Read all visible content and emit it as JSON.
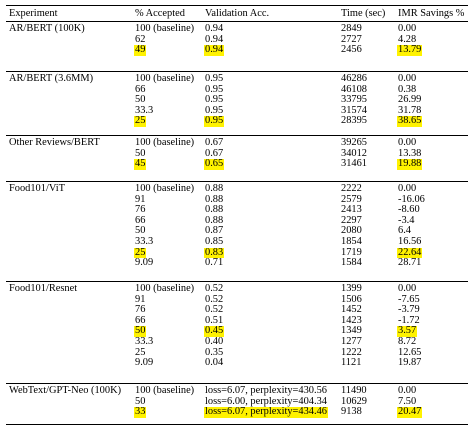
{
  "header": {
    "experiment": "Experiment",
    "accepted": "% Accepted",
    "validation": "Validation Acc.",
    "time": "Time (sec)",
    "savings": "IMR Savings %"
  },
  "highlight_color": "#fff200",
  "groups": [
    {
      "name": "AR/BERT (100K)",
      "rows": [
        {
          "accepted": "100 (baseline)",
          "acc": "0.94",
          "time": "2849",
          "savings": "0.00",
          "hl": false
        },
        {
          "accepted": "62",
          "acc": "0.94",
          "time": "2727",
          "savings": "4.28",
          "hl": false
        },
        {
          "accepted": "49",
          "acc": "0.94",
          "time": "2456",
          "savings": "13.79",
          "hl": true
        }
      ]
    },
    {
      "name": "AR/BERT (3.6MM)",
      "rows": [
        {
          "accepted": "100 (baseline)",
          "acc": "0.95",
          "time": "46286",
          "savings": "0.00",
          "hl": false
        },
        {
          "accepted": "66",
          "acc": "0.95",
          "time": "46108",
          "savings": "0.38",
          "hl": false
        },
        {
          "accepted": "50",
          "acc": "0.95",
          "time": "33795",
          "savings": "26.99",
          "hl": false
        },
        {
          "accepted": "33.3",
          "acc": "0.95",
          "time": "31574",
          "savings": "31.78",
          "hl": false
        },
        {
          "accepted": "25",
          "acc": "0.95",
          "time": "28395",
          "savings": "38.65",
          "hl": true
        }
      ]
    },
    {
      "name": "Other Reviews/BERT",
      "rows": [
        {
          "accepted": "100 (baseline)",
          "acc": "0.67",
          "time": "39265",
          "savings": "0.00",
          "hl": false
        },
        {
          "accepted": "50",
          "acc": "0.67",
          "time": "34012",
          "savings": "13.38",
          "hl": false
        },
        {
          "accepted": "45",
          "acc": "0.65",
          "time": "31461",
          "savings": "19.88",
          "hl": true
        }
      ]
    },
    {
      "name": "Food101/ViT",
      "rows": [
        {
          "accepted": "100 (baseline)",
          "acc": "0.88",
          "time": "2222",
          "savings": "0.00",
          "hl": false
        },
        {
          "accepted": "91",
          "acc": "0.88",
          "time": "2579",
          "savings": "-16.06",
          "hl": false
        },
        {
          "accepted": "76",
          "acc": "0.88",
          "time": "2413",
          "savings": "-8.60",
          "hl": false
        },
        {
          "accepted": "66",
          "acc": "0.88",
          "time": "2297",
          "savings": "-3.4",
          "hl": false
        },
        {
          "accepted": "50",
          "acc": "0.87",
          "time": "2080",
          "savings": "6.4",
          "hl": false
        },
        {
          "accepted": "33.3",
          "acc": "0.85",
          "time": "1854",
          "savings": "16.56",
          "hl": false
        },
        {
          "accepted": "25",
          "acc": "0.83",
          "time": "1719",
          "savings": "22.64",
          "hl": true
        },
        {
          "accepted": "9.09",
          "acc": "0.71",
          "time": "1584",
          "savings": "28.71",
          "hl": false
        }
      ]
    },
    {
      "name": "Food101/Resnet",
      "rows": [
        {
          "accepted": "100 (baseline)",
          "acc": "0.52",
          "time": "1399",
          "savings": "0.00",
          "hl": false
        },
        {
          "accepted": "91",
          "acc": "0.52",
          "time": "1506",
          "savings": "-7.65",
          "hl": false
        },
        {
          "accepted": "76",
          "acc": "0.52",
          "time": "1452",
          "savings": "-3.79",
          "hl": false
        },
        {
          "accepted": "66",
          "acc": "0.51",
          "time": "1423",
          "savings": "-1.72",
          "hl": false
        },
        {
          "accepted": "50",
          "acc": "0.45",
          "time": "1349",
          "savings": "3.57",
          "hl": true
        },
        {
          "accepted": "33.3",
          "acc": "0.40",
          "time": "1277",
          "savings": "8.72",
          "hl": false
        },
        {
          "accepted": "25",
          "acc": "0.35",
          "time": "1222",
          "savings": "12.65",
          "hl": false
        },
        {
          "accepted": "9.09",
          "acc": "0.04",
          "time": "1121",
          "savings": "19.87",
          "hl": false
        }
      ]
    },
    {
      "name": "WebText/GPT-Neo (100K)",
      "rows": [
        {
          "accepted": "100 (baseline)",
          "acc": "loss=6.07, perplexity=430.56",
          "time": "11490",
          "savings": "0.00",
          "hl": false
        },
        {
          "accepted": "50",
          "acc": "loss=6.00, perplexity=404.34",
          "time": "10629",
          "savings": "7.50",
          "hl": false
        },
        {
          "accepted": "33",
          "acc": "loss=6.07, perplexity=434.46",
          "time": "9138",
          "savings": "20.47",
          "hl": true
        }
      ]
    }
  ]
}
